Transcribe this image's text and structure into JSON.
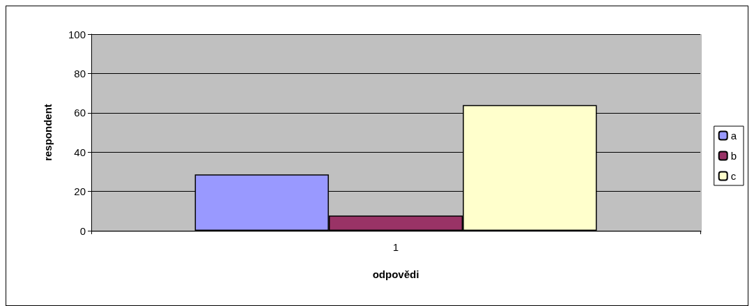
{
  "chart_data": {
    "type": "bar",
    "xlabel": "odpovědi",
    "ylabel": "respondent",
    "categories": [
      "1"
    ],
    "series": [
      {
        "name": "a",
        "color": "#9999ff",
        "values": [
          28.6
        ]
      },
      {
        "name": "b",
        "color": "#993366",
        "values": [
          7.7
        ]
      },
      {
        "name": "c",
        "color": "#ffffcc",
        "values": [
          63.9
        ]
      }
    ],
    "ylim": [
      0,
      100
    ],
    "yticks": [
      0,
      20,
      40,
      60,
      80,
      100
    ],
    "grid": "y",
    "legend": "right"
  }
}
